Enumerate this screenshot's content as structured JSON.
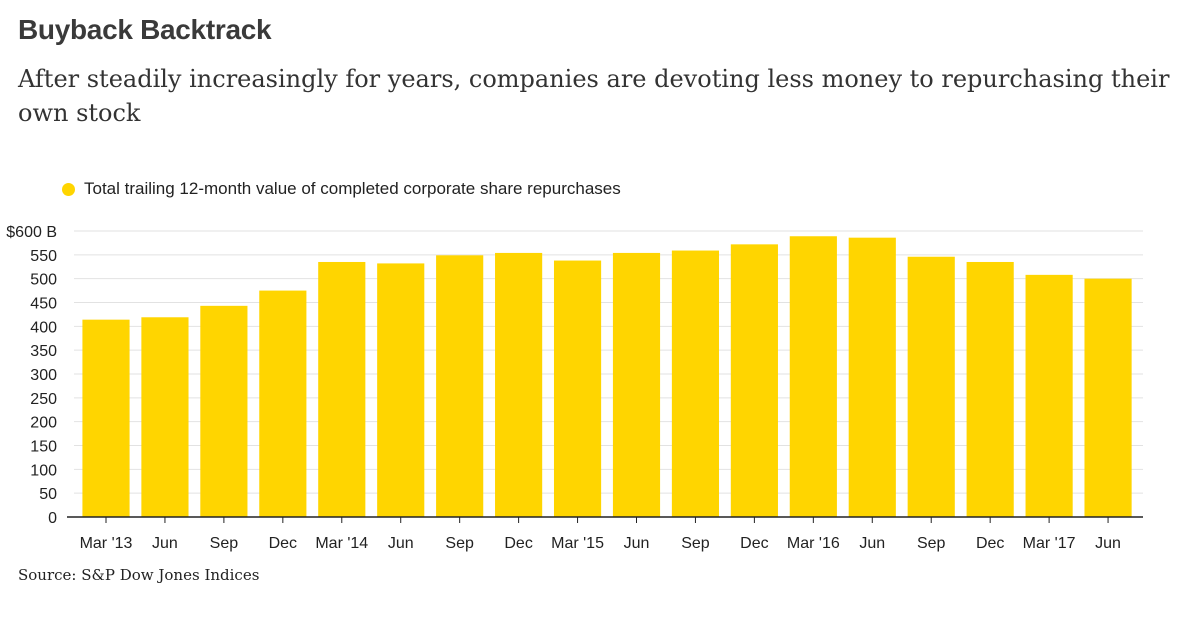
{
  "title": "Buyback Backtrack",
  "subtitle": "After steadily increasingly for years, companies are devoting less money to repurchasing their own stock",
  "source": "Source: S&P Dow Jones Indices",
  "colors": {
    "bar": "#ffd500",
    "grid": "#e2e2e2",
    "axis": "#222222"
  },
  "chart_data": {
    "type": "bar",
    "legend_position": "top-left",
    "grid": true,
    "ylim": [
      0,
      600
    ],
    "yticks": [
      0,
      50,
      100,
      150,
      200,
      250,
      300,
      350,
      400,
      450,
      500,
      550,
      600
    ],
    "ytick_labels": [
      "0",
      "50",
      "100",
      "150",
      "200",
      "250",
      "300",
      "350",
      "400",
      "450",
      "500",
      "550",
      "$600 B"
    ],
    "categories": [
      "Mar '13",
      "Jun",
      "Sep",
      "Dec",
      "Mar '14",
      "Jun",
      "Sep",
      "Dec",
      "Mar '15",
      "Jun",
      "Sep",
      "Dec",
      "Mar '16",
      "Jun",
      "Sep",
      "Dec",
      "Mar '17",
      "Jun"
    ],
    "series": [
      {
        "name": "Total trailing 12-month value of completed corporate share repurchases",
        "values": [
          414,
          419,
          443,
          475,
          535,
          532,
          549,
          554,
          538,
          554,
          559,
          572,
          589,
          586,
          546,
          535,
          508,
          500
        ]
      }
    ]
  }
}
